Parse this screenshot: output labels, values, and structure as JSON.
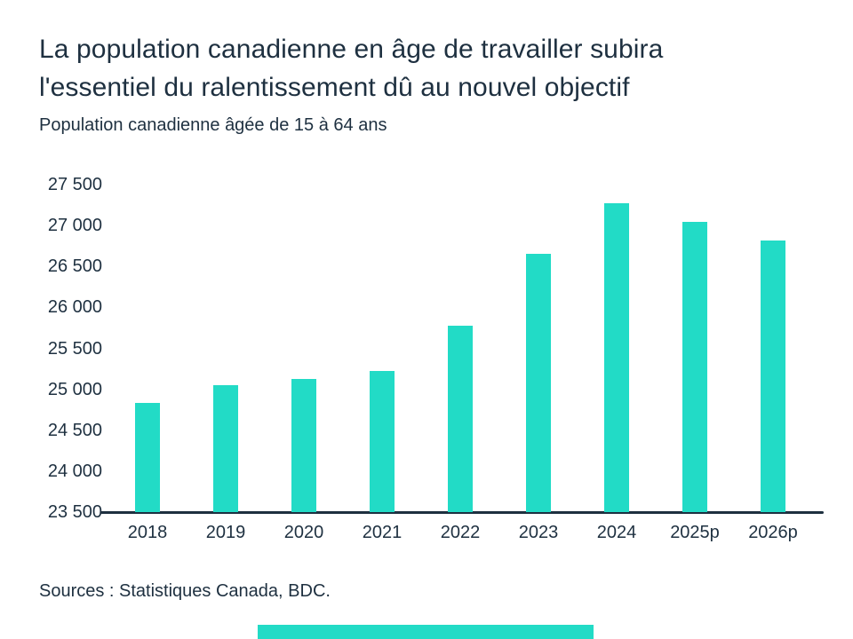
{
  "page": {
    "title_lines": [
      "La population canadienne en âge de travailler subira",
      "l'essentiel du ralentissement dû au nouvel objectif"
    ],
    "subtitle": "Population canadienne âgée de 15 à 64 ans",
    "source": "Sources : Statistiques Canada, BDC."
  },
  "colors": {
    "accent": "#22dbc6",
    "text": "#1e3040",
    "axis": "#1e3040",
    "background": "#ffffff"
  },
  "chart_data": {
    "type": "bar",
    "title": "La population canadienne en âge de travailler subira l'essentiel du ralentissement dû au nouvel objectif",
    "subtitle": "Population canadienne âgée de 15 à 64 ans",
    "categories": [
      "2018",
      "2019",
      "2020",
      "2021",
      "2022",
      "2023",
      "2024",
      "2025p",
      "2026p"
    ],
    "values": [
      24830,
      25050,
      25130,
      25220,
      25780,
      26650,
      27270,
      27040,
      26820
    ],
    "ylim": [
      23500,
      27500
    ],
    "ytick_step": 500,
    "ytick_labels": [
      "27 500",
      "27 000",
      "26 500",
      "26 000",
      "25 500",
      "25 000",
      "24 500",
      "24 000",
      "23 500"
    ],
    "grid": false,
    "legend": false,
    "bar_color": "#22dbc6",
    "source": "Sources : Statistiques Canada, BDC."
  }
}
